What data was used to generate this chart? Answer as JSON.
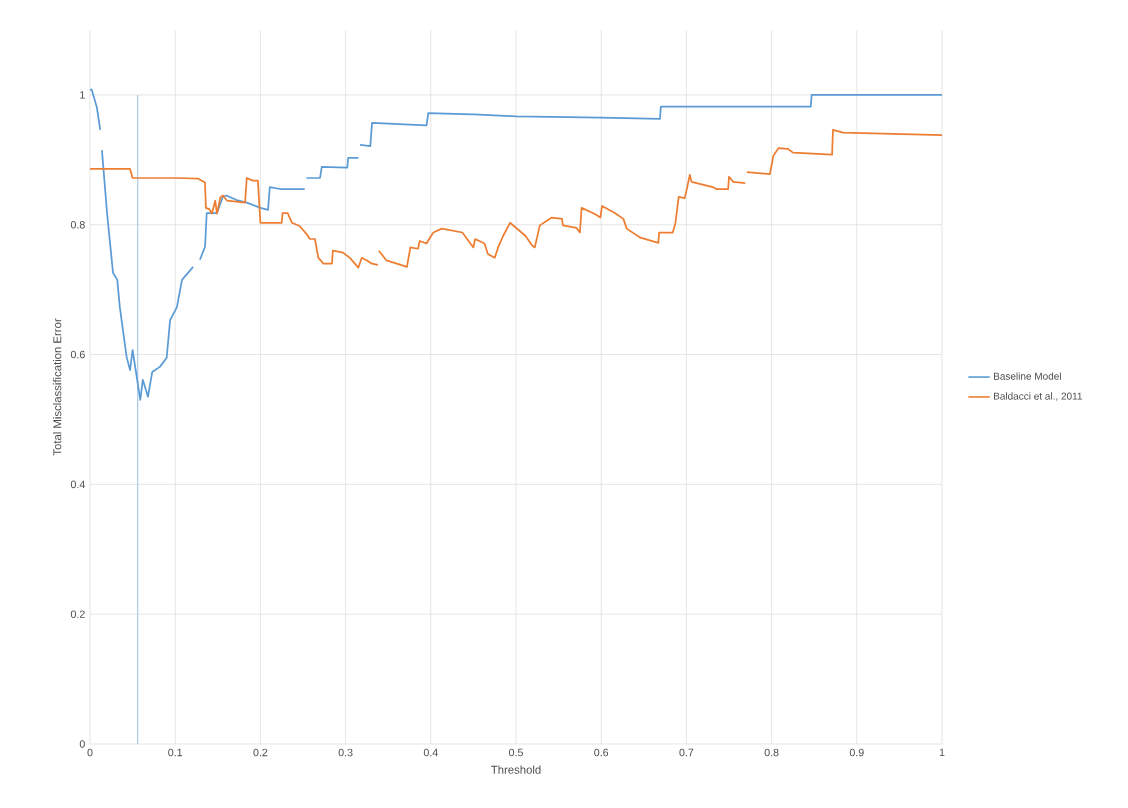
{
  "chart_data": {
    "type": "line",
    "xlabel": "Threshold",
    "ylabel": "Total Misclassification Error",
    "xlim": [
      0,
      1
    ],
    "ylim": [
      0,
      1.1
    ],
    "xticks": [
      0,
      0.1,
      0.2,
      0.3,
      0.4,
      0.5,
      0.6,
      0.7,
      0.8,
      0.9,
      1
    ],
    "yticks": [
      0,
      0.2,
      0.4,
      0.6,
      0.8,
      1
    ],
    "grid": true,
    "legend": "right",
    "ref_lines": [
      {
        "axis": "x",
        "value": 0.056,
        "color": "#9dc3e6"
      }
    ],
    "series": [
      {
        "name": "Baseline Model",
        "color": "#5b9bd5",
        "x": [
          0,
          0.002,
          0.008,
          0.012,
          0.013,
          0.014,
          0.02,
          0.027,
          0.032,
          0.035,
          0.043,
          0.047,
          0.05,
          0.059,
          0.062,
          0.068,
          0.073,
          0.082,
          0.09,
          0.094,
          0.102,
          0.108,
          0.121,
          0.124,
          0.129,
          0.135,
          0.137,
          0.149,
          0.156,
          0.16,
          0.172,
          0.184,
          0.2,
          0.209,
          0.211,
          0.223,
          0.252,
          0.253,
          0.254,
          0.27,
          0.272,
          0.302,
          0.303,
          0.315,
          0.316,
          0.317,
          0.329,
          0.331,
          0.395,
          0.397,
          0.45,
          0.5,
          0.6,
          0.669,
          0.67,
          0.846,
          0.847,
          1.0
        ],
        "values": [
          1.008,
          1.008,
          0.981,
          0.946,
          null,
          0.915,
          0.818,
          0.726,
          0.715,
          0.673,
          0.596,
          0.576,
          0.607,
          0.53,
          0.561,
          0.535,
          0.573,
          0.581,
          0.595,
          0.653,
          0.673,
          0.715,
          0.735,
          null,
          0.746,
          0.766,
          0.818,
          0.818,
          0.843,
          0.845,
          0.838,
          0.834,
          0.826,
          0.823,
          0.858,
          0.855,
          0.855,
          null,
          0.872,
          0.872,
          0.889,
          0.888,
          0.903,
          0.903,
          null,
          0.923,
          0.921,
          0.957,
          0.953,
          0.972,
          0.97,
          0.967,
          0.965,
          0.963,
          0.982,
          0.982,
          1.0,
          1.0
        ]
      },
      {
        "name": "Baldacci et al., 2011",
        "color": "#ed7d31",
        "x": [
          0,
          0.047,
          0.05,
          0.102,
          0.127,
          0.135,
          0.136,
          0.14,
          0.143,
          0.147,
          0.149,
          0.153,
          0.156,
          0.161,
          0.182,
          0.184,
          0.191,
          0.197,
          0.2,
          0.225,
          0.226,
          0.232,
          0.237,
          0.246,
          0.254,
          0.258,
          0.264,
          0.268,
          0.274,
          0.284,
          0.285,
          0.297,
          0.305,
          0.315,
          0.319,
          0.325,
          0.331,
          0.338,
          0.3385,
          0.339,
          0.348,
          0.372,
          0.376,
          0.385,
          0.387,
          0.395,
          0.399,
          0.403,
          0.413,
          0.437,
          0.45,
          0.452,
          0.463,
          0.467,
          0.475,
          0.479,
          0.485,
          0.493,
          0.511,
          0.519,
          0.522,
          0.528,
          0.542,
          0.554,
          0.555,
          0.571,
          0.575,
          0.577,
          0.592,
          0.599,
          0.601,
          0.616,
          0.626,
          0.63,
          0.646,
          0.667,
          0.668,
          0.684,
          0.687,
          0.691,
          0.698,
          0.701,
          0.704,
          0.706,
          0.731,
          0.735,
          0.749,
          0.75,
          0.755,
          0.769,
          0.77,
          0.771,
          0.798,
          0.802,
          0.808,
          0.819,
          0.825,
          0.871,
          0.872,
          0.884,
          0.942,
          1.0
        ],
        "values": [
          0.886,
          0.886,
          0.872,
          0.872,
          0.871,
          0.865,
          0.826,
          0.824,
          0.817,
          0.837,
          0.817,
          0.842,
          0.845,
          0.837,
          0.834,
          0.872,
          0.868,
          0.868,
          0.803,
          0.803,
          0.818,
          0.818,
          0.803,
          0.798,
          0.786,
          0.778,
          0.778,
          0.749,
          0.74,
          0.74,
          0.76,
          0.757,
          0.749,
          0.734,
          0.749,
          0.745,
          0.74,
          0.738,
          null,
          0.76,
          0.745,
          0.735,
          0.765,
          0.763,
          0.775,
          0.771,
          0.78,
          0.788,
          0.794,
          0.788,
          0.765,
          0.778,
          0.771,
          0.755,
          0.749,
          0.765,
          0.783,
          0.803,
          0.783,
          0.768,
          0.765,
          0.799,
          0.811,
          0.809,
          0.799,
          0.795,
          0.788,
          0.826,
          0.817,
          0.811,
          0.829,
          0.818,
          0.809,
          0.794,
          0.78,
          0.772,
          0.788,
          0.788,
          0.802,
          0.843,
          0.841,
          0.858,
          0.877,
          0.866,
          0.858,
          0.855,
          0.855,
          0.874,
          0.866,
          0.864,
          null,
          0.881,
          0.878,
          0.906,
          0.918,
          0.917,
          0.911,
          0.908,
          0.946,
          0.942,
          0.94,
          0.938
        ]
      }
    ]
  }
}
